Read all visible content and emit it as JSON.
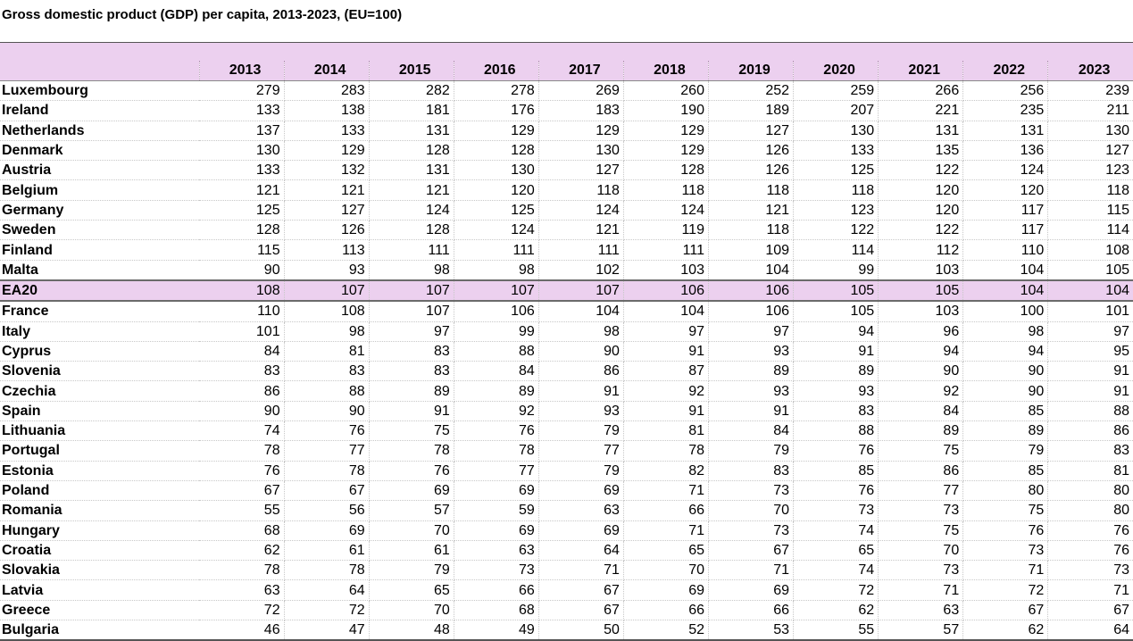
{
  "chart_data": {
    "type": "table",
    "title": "Gross domestic product (GDP) per capita, 2013-2023, (EU=100)",
    "columns": [
      "2013",
      "2014",
      "2015",
      "2016",
      "2017",
      "2018",
      "2019",
      "2020",
      "2021",
      "2022",
      "2023"
    ],
    "highlight_row": "EA20",
    "highlight_color": "#ecd0ef",
    "rows": [
      {
        "name": "Luxembourg",
        "values": [
          279,
          283,
          282,
          278,
          269,
          260,
          252,
          259,
          266,
          256,
          239
        ]
      },
      {
        "name": "Ireland",
        "values": [
          133,
          138,
          181,
          176,
          183,
          190,
          189,
          207,
          221,
          235,
          211
        ]
      },
      {
        "name": "Netherlands",
        "values": [
          137,
          133,
          131,
          129,
          129,
          129,
          127,
          130,
          131,
          131,
          130
        ]
      },
      {
        "name": "Denmark",
        "values": [
          130,
          129,
          128,
          128,
          130,
          129,
          126,
          133,
          135,
          136,
          127
        ]
      },
      {
        "name": "Austria",
        "values": [
          133,
          132,
          131,
          130,
          127,
          128,
          126,
          125,
          122,
          124,
          123
        ]
      },
      {
        "name": "Belgium",
        "values": [
          121,
          121,
          121,
          120,
          118,
          118,
          118,
          118,
          120,
          120,
          118
        ]
      },
      {
        "name": "Germany",
        "values": [
          125,
          127,
          124,
          125,
          124,
          124,
          121,
          123,
          120,
          117,
          115
        ]
      },
      {
        "name": "Sweden",
        "values": [
          128,
          126,
          128,
          124,
          121,
          119,
          118,
          122,
          122,
          117,
          114
        ]
      },
      {
        "name": "Finland",
        "values": [
          115,
          113,
          111,
          111,
          111,
          111,
          109,
          114,
          112,
          110,
          108
        ]
      },
      {
        "name": "Malta",
        "values": [
          90,
          93,
          98,
          98,
          102,
          103,
          104,
          99,
          103,
          104,
          105
        ]
      },
      {
        "name": "EA20",
        "values": [
          108,
          107,
          107,
          107,
          107,
          106,
          106,
          105,
          105,
          104,
          104
        ]
      },
      {
        "name": "France",
        "values": [
          110,
          108,
          107,
          106,
          104,
          104,
          106,
          105,
          103,
          100,
          101
        ]
      },
      {
        "name": "Italy",
        "values": [
          101,
          98,
          97,
          99,
          98,
          97,
          97,
          94,
          96,
          98,
          97
        ]
      },
      {
        "name": "Cyprus",
        "values": [
          84,
          81,
          83,
          88,
          90,
          91,
          93,
          91,
          94,
          94,
          95
        ]
      },
      {
        "name": "Slovenia",
        "values": [
          83,
          83,
          83,
          84,
          86,
          87,
          89,
          89,
          90,
          90,
          91
        ]
      },
      {
        "name": "Czechia",
        "values": [
          86,
          88,
          89,
          89,
          91,
          92,
          93,
          93,
          92,
          90,
          91
        ]
      },
      {
        "name": "Spain",
        "values": [
          90,
          90,
          91,
          92,
          93,
          91,
          91,
          83,
          84,
          85,
          88
        ]
      },
      {
        "name": "Lithuania",
        "values": [
          74,
          76,
          75,
          76,
          79,
          81,
          84,
          88,
          89,
          89,
          86
        ]
      },
      {
        "name": "Portugal",
        "values": [
          78,
          77,
          78,
          78,
          77,
          78,
          79,
          76,
          75,
          79,
          83
        ]
      },
      {
        "name": "Estonia",
        "values": [
          76,
          78,
          76,
          77,
          79,
          82,
          83,
          85,
          86,
          85,
          81
        ]
      },
      {
        "name": "Poland",
        "values": [
          67,
          67,
          69,
          69,
          69,
          71,
          73,
          76,
          77,
          80,
          80
        ]
      },
      {
        "name": "Romania",
        "values": [
          55,
          56,
          57,
          59,
          63,
          66,
          70,
          73,
          73,
          75,
          80
        ]
      },
      {
        "name": "Hungary",
        "values": [
          68,
          69,
          70,
          69,
          69,
          71,
          73,
          74,
          75,
          76,
          76
        ]
      },
      {
        "name": "Croatia",
        "values": [
          62,
          61,
          61,
          63,
          64,
          65,
          67,
          65,
          70,
          73,
          76
        ]
      },
      {
        "name": "Slovakia",
        "values": [
          78,
          78,
          79,
          73,
          71,
          70,
          71,
          74,
          73,
          71,
          73
        ]
      },
      {
        "name": "Latvia",
        "values": [
          63,
          64,
          65,
          66,
          67,
          69,
          69,
          72,
          71,
          72,
          71
        ]
      },
      {
        "name": "Greece",
        "values": [
          72,
          72,
          70,
          68,
          67,
          66,
          66,
          62,
          63,
          67,
          67
        ]
      },
      {
        "name": "Bulgaria",
        "values": [
          46,
          47,
          48,
          49,
          50,
          52,
          53,
          55,
          57,
          62,
          64
        ]
      }
    ]
  }
}
